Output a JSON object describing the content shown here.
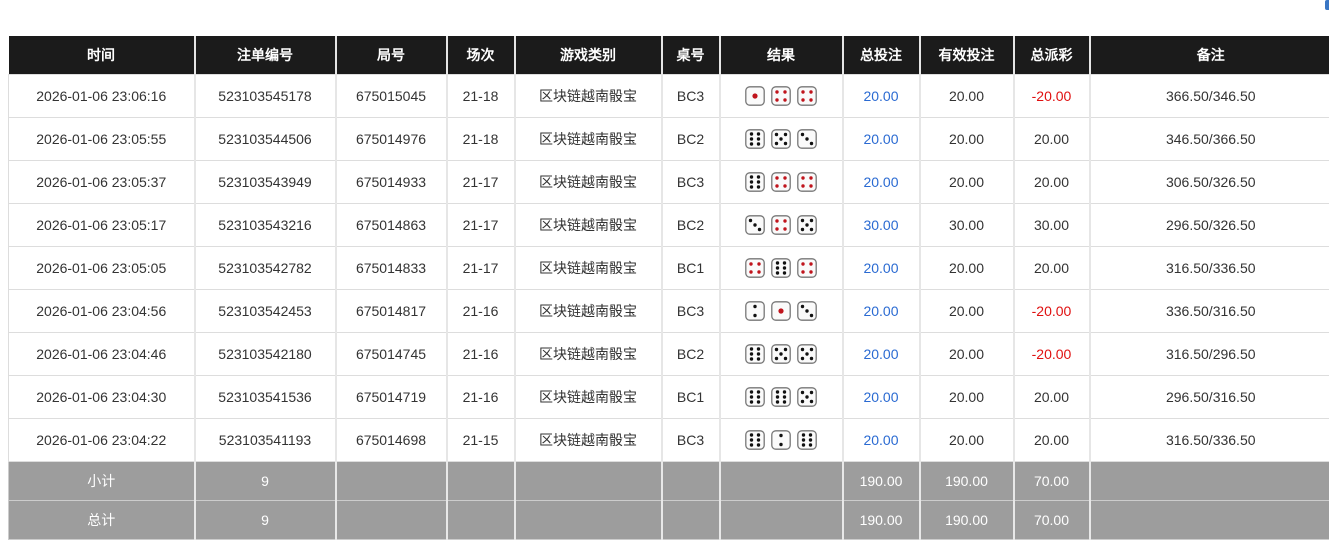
{
  "columns": [
    "时间",
    "注单编号",
    "局号",
    "场次",
    "游戏类别",
    "桌号",
    "结果",
    "总投注",
    "有效投注",
    "总派彩",
    "备注"
  ],
  "rows": [
    {
      "time": "2026-01-06 23:06:16",
      "bet_id": "523103545178",
      "round": "675015045",
      "session": "21-18",
      "game": "区块链越南骰宝",
      "table": "BC3",
      "dice": [
        1,
        4,
        4
      ],
      "bet": "20.00",
      "valid": "20.00",
      "payout": "-20.00",
      "payout_negative": true,
      "note": "366.50/346.50"
    },
    {
      "time": "2026-01-06 23:05:55",
      "bet_id": "523103544506",
      "round": "675014976",
      "session": "21-18",
      "game": "区块链越南骰宝",
      "table": "BC2",
      "dice": [
        6,
        5,
        3
      ],
      "bet": "20.00",
      "valid": "20.00",
      "payout": "20.00",
      "payout_negative": false,
      "note": "346.50/366.50"
    },
    {
      "time": "2026-01-06 23:05:37",
      "bet_id": "523103543949",
      "round": "675014933",
      "session": "21-17",
      "game": "区块链越南骰宝",
      "table": "BC3",
      "dice": [
        6,
        4,
        4
      ],
      "bet": "20.00",
      "valid": "20.00",
      "payout": "20.00",
      "payout_negative": false,
      "note": "306.50/326.50"
    },
    {
      "time": "2026-01-06 23:05:17",
      "bet_id": "523103543216",
      "round": "675014863",
      "session": "21-17",
      "game": "区块链越南骰宝",
      "table": "BC2",
      "dice": [
        3,
        4,
        5
      ],
      "bet": "30.00",
      "valid": "30.00",
      "payout": "30.00",
      "payout_negative": false,
      "note": "296.50/326.50"
    },
    {
      "time": "2026-01-06 23:05:05",
      "bet_id": "523103542782",
      "round": "675014833",
      "session": "21-17",
      "game": "区块链越南骰宝",
      "table": "BC1",
      "dice": [
        4,
        6,
        4
      ],
      "bet": "20.00",
      "valid": "20.00",
      "payout": "20.00",
      "payout_negative": false,
      "note": "316.50/336.50"
    },
    {
      "time": "2026-01-06 23:04:56",
      "bet_id": "523103542453",
      "round": "675014817",
      "session": "21-16",
      "game": "区块链越南骰宝",
      "table": "BC3",
      "dice": [
        2,
        1,
        3
      ],
      "bet": "20.00",
      "valid": "20.00",
      "payout": "-20.00",
      "payout_negative": true,
      "note": "336.50/316.50"
    },
    {
      "time": "2026-01-06 23:04:46",
      "bet_id": "523103542180",
      "round": "675014745",
      "session": "21-16",
      "game": "区块链越南骰宝",
      "table": "BC2",
      "dice": [
        6,
        5,
        5
      ],
      "bet": "20.00",
      "valid": "20.00",
      "payout": "-20.00",
      "payout_negative": true,
      "note": "316.50/296.50"
    },
    {
      "time": "2026-01-06 23:04:30",
      "bet_id": "523103541536",
      "round": "675014719",
      "session": "21-16",
      "game": "区块链越南骰宝",
      "table": "BC1",
      "dice": [
        6,
        6,
        5
      ],
      "bet": "20.00",
      "valid": "20.00",
      "payout": "20.00",
      "payout_negative": false,
      "note": "296.50/316.50"
    },
    {
      "time": "2026-01-06 23:04:22",
      "bet_id": "523103541193",
      "round": "675014698",
      "session": "21-15",
      "game": "区块链越南骰宝",
      "table": "BC3",
      "dice": [
        6,
        2,
        6
      ],
      "bet": "20.00",
      "valid": "20.00",
      "payout": "20.00",
      "payout_negative": false,
      "note": "316.50/336.50"
    }
  ],
  "subtotal": {
    "label": "小计",
    "count": "9",
    "bet": "190.00",
    "valid": "190.00",
    "payout": "70.00"
  },
  "total": {
    "label": "总计",
    "count": "9",
    "bet": "190.00",
    "valid": "190.00",
    "payout": "70.00"
  },
  "colors": {
    "header": "#1b1b1b",
    "link_blue": "#2a6ad2",
    "negative_red": "#e01010",
    "summary_gray": "#9d9d9d",
    "die_red_pips": "#c0141c"
  }
}
